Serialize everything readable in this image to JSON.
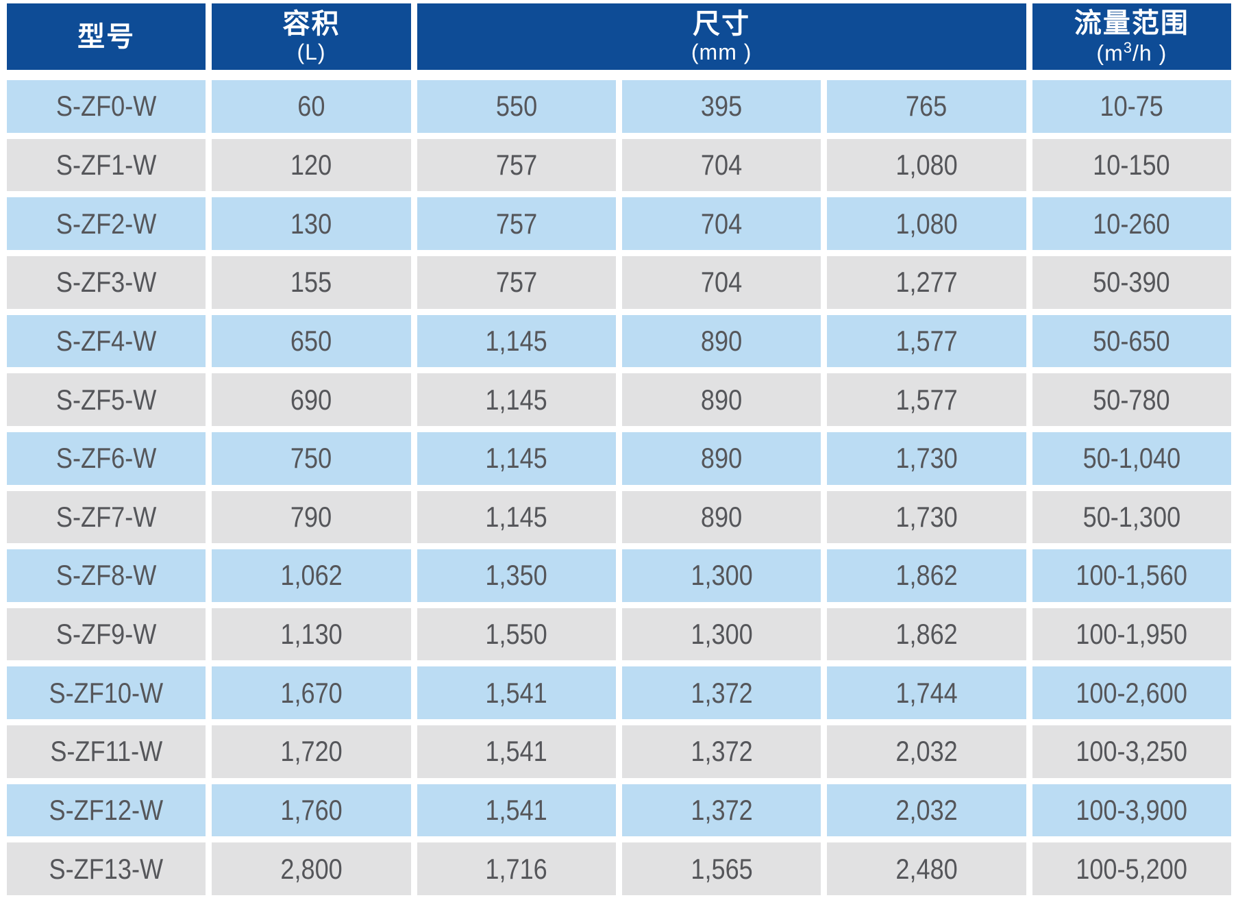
{
  "header": {
    "model": {
      "title": "型号"
    },
    "volume": {
      "title": "容积",
      "unit": "(L)"
    },
    "dimensions": {
      "title": "尺寸",
      "unit": "(mm )"
    },
    "flow_range": {
      "title": "流量范围",
      "unit_pre": "(m",
      "unit_sup": "3",
      "unit_post": "/h )"
    }
  },
  "colors": {
    "header_bg": "#0E4C96",
    "row_blue": "#BBDCF3",
    "row_gray": "#E1E1E2",
    "header_text": "#FFFFFF",
    "cell_text": "#55565A"
  },
  "rows": [
    {
      "model": "S-ZF0-W",
      "volume": "60",
      "dim1": "550",
      "dim2": "395",
      "dim3": "765",
      "flow": "10-75"
    },
    {
      "model": "S-ZF1-W",
      "volume": "120",
      "dim1": "757",
      "dim2": "704",
      "dim3": "1,080",
      "flow": "10-150"
    },
    {
      "model": "S-ZF2-W",
      "volume": "130",
      "dim1": "757",
      "dim2": "704",
      "dim3": "1,080",
      "flow": "10-260"
    },
    {
      "model": "S-ZF3-W",
      "volume": "155",
      "dim1": "757",
      "dim2": "704",
      "dim3": "1,277",
      "flow": "50-390"
    },
    {
      "model": "S-ZF4-W",
      "volume": "650",
      "dim1": "1,145",
      "dim2": "890",
      "dim3": "1,577",
      "flow": "50-650"
    },
    {
      "model": "S-ZF5-W",
      "volume": "690",
      "dim1": "1,145",
      "dim2": "890",
      "dim3": "1,577",
      "flow": "50-780"
    },
    {
      "model": "S-ZF6-W",
      "volume": "750",
      "dim1": "1,145",
      "dim2": "890",
      "dim3": "1,730",
      "flow": "50-1,040"
    },
    {
      "model": "S-ZF7-W",
      "volume": "790",
      "dim1": "1,145",
      "dim2": "890",
      "dim3": "1,730",
      "flow": "50-1,300"
    },
    {
      "model": "S-ZF8-W",
      "volume": "1,062",
      "dim1": "1,350",
      "dim2": "1,300",
      "dim3": "1,862",
      "flow": "100-1,560"
    },
    {
      "model": "S-ZF9-W",
      "volume": "1,130",
      "dim1": "1,550",
      "dim2": "1,300",
      "dim3": "1,862",
      "flow": "100-1,950"
    },
    {
      "model": "S-ZF10-W",
      "volume": "1,670",
      "dim1": "1,541",
      "dim2": "1,372",
      "dim3": "1,744",
      "flow": "100-2,600"
    },
    {
      "model": "S-ZF11-W",
      "volume": "1,720",
      "dim1": "1,541",
      "dim2": "1,372",
      "dim3": "2,032",
      "flow": "100-3,250"
    },
    {
      "model": "S-ZF12-W",
      "volume": "1,760",
      "dim1": "1,541",
      "dim2": "1,372",
      "dim3": "2,032",
      "flow": "100-3,900"
    },
    {
      "model": "S-ZF13-W",
      "volume": "2,800",
      "dim1": "1,716",
      "dim2": "1,565",
      "dim3": "2,480",
      "flow": "100-5,200"
    }
  ]
}
